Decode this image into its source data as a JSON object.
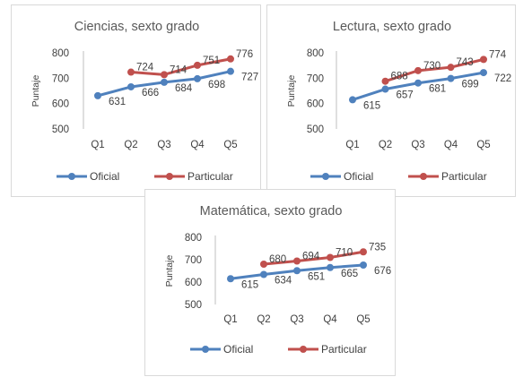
{
  "colors": {
    "oficial": "#4f81bd",
    "particular": "#c0504d"
  },
  "chart_data": [
    {
      "type": "line",
      "title": "Ciencias, sexto grado",
      "ylabel": "Puntaje",
      "categories": [
        "Q1",
        "Q2",
        "Q3",
        "Q4",
        "Q5"
      ],
      "ylim": [
        500,
        800
      ],
      "yticks": [
        "500",
        "600",
        "700",
        "800"
      ],
      "legend": "bottom",
      "series": [
        {
          "name": "Oficial",
          "color": "#4f81bd",
          "values": [
            631,
            666,
            684,
            698,
            727
          ]
        },
        {
          "name": "Particular",
          "color": "#c0504d",
          "values": [
            null,
            724,
            714,
            751,
            776
          ]
        }
      ]
    },
    {
      "type": "line",
      "title": "Lectura, sexto grado",
      "ylabel": "Puntaje",
      "categories": [
        "Q1",
        "Q2",
        "Q3",
        "Q4",
        "Q5"
      ],
      "ylim": [
        500,
        800
      ],
      "yticks": [
        "500",
        "600",
        "700",
        "800"
      ],
      "legend": "bottom",
      "series": [
        {
          "name": "Oficial",
          "color": "#4f81bd",
          "values": [
            615,
            657,
            681,
            699,
            722
          ]
        },
        {
          "name": "Particular",
          "color": "#c0504d",
          "values": [
            null,
            688,
            730,
            743,
            774
          ]
        }
      ]
    },
    {
      "type": "line",
      "title": "Matemática, sexto grado",
      "ylabel": "Puntaje",
      "categories": [
        "Q1",
        "Q2",
        "Q3",
        "Q4",
        "Q5"
      ],
      "ylim": [
        500,
        800
      ],
      "yticks": [
        "500",
        "600",
        "700",
        "800"
      ],
      "legend": "bottom",
      "series": [
        {
          "name": "Oficial",
          "color": "#4f81bd",
          "values": [
            615,
            634,
            651,
            665,
            676
          ]
        },
        {
          "name": "Particular",
          "color": "#c0504d",
          "values": [
            null,
            680,
            694,
            710,
            735
          ]
        }
      ]
    }
  ]
}
